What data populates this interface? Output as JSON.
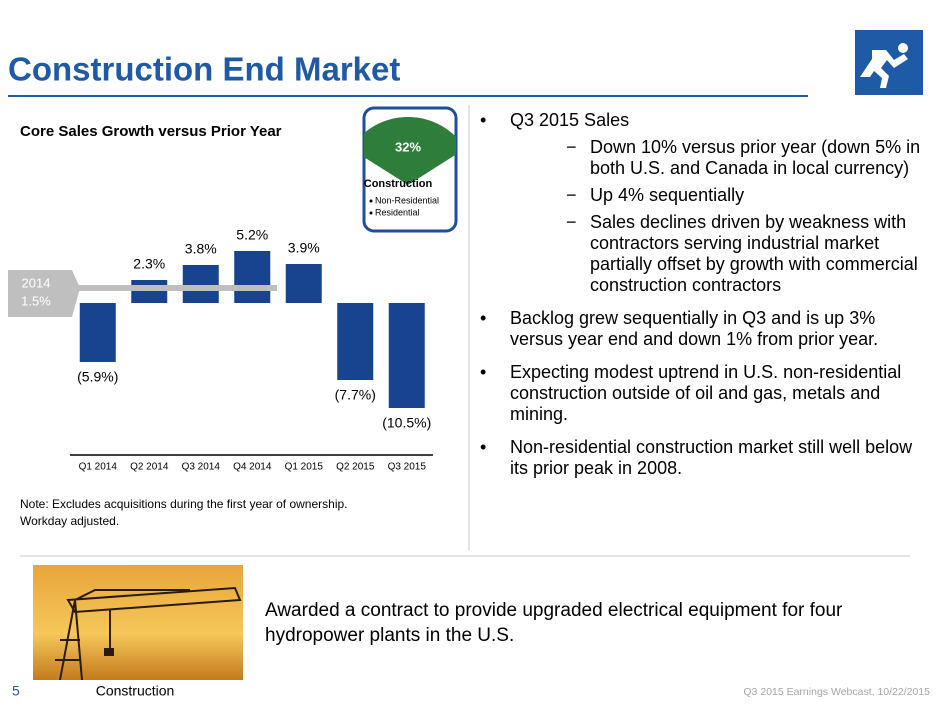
{
  "title": "Construction End Market",
  "chart_data": {
    "type": "bar",
    "title": "Core Sales Growth versus Prior Year",
    "categories": [
      "Q1 2014",
      "Q2 2014",
      "Q3 2014",
      "Q4 2014",
      "Q1 2015",
      "Q2 2015",
      "Q3 2015"
    ],
    "values": [
      -5.9,
      2.3,
      3.8,
      5.2,
      3.9,
      -7.7,
      -10.5
    ],
    "value_labels": [
      "(5.9%)",
      "2.3%",
      "3.8%",
      "5.2%",
      "3.9%",
      "(7.7%)",
      "(10.5%)"
    ],
    "color": "#17438f",
    "reference": {
      "label": "2014",
      "value": 1.5,
      "value_label": "1.5%",
      "color": "#bfbfbf"
    },
    "note": "Note:  Excludes acquisitions during the first year of ownership. Workday adjusted."
  },
  "inset": {
    "value": 32,
    "value_label": "32%",
    "color": "#2f7d3b",
    "title": "Construction",
    "items": [
      "Non-Residential",
      "Residential"
    ]
  },
  "bullets": [
    {
      "text": "Q3 2015 Sales",
      "sub": [
        "Down 10% versus prior year (down 5% in both U.S. and Canada in local currency)",
        "Up 4% sequentially",
        "Sales declines driven by weakness with contractors serving industrial market partially offset by growth with commercial construction contractors"
      ]
    },
    {
      "text": "Backlog grew sequentially in Q3 and is up 3% versus year end and down 1% from prior year.",
      "sub": []
    },
    {
      "text": "Expecting modest uptrend in U.S. non-residential construction outside of oil and gas, metals and mining.",
      "sub": []
    },
    {
      "text": "Non-residential construction market still well below its prior peak in 2008.",
      "sub": []
    }
  ],
  "highlight": {
    "text": "Awarded a contract to provide upgraded electrical equipment for four hydropower plants in the U.S.",
    "caption": "Construction"
  },
  "footer": {
    "page": "5",
    "text": "Q3 2015 Earnings Webcast, 10/22/2015"
  }
}
